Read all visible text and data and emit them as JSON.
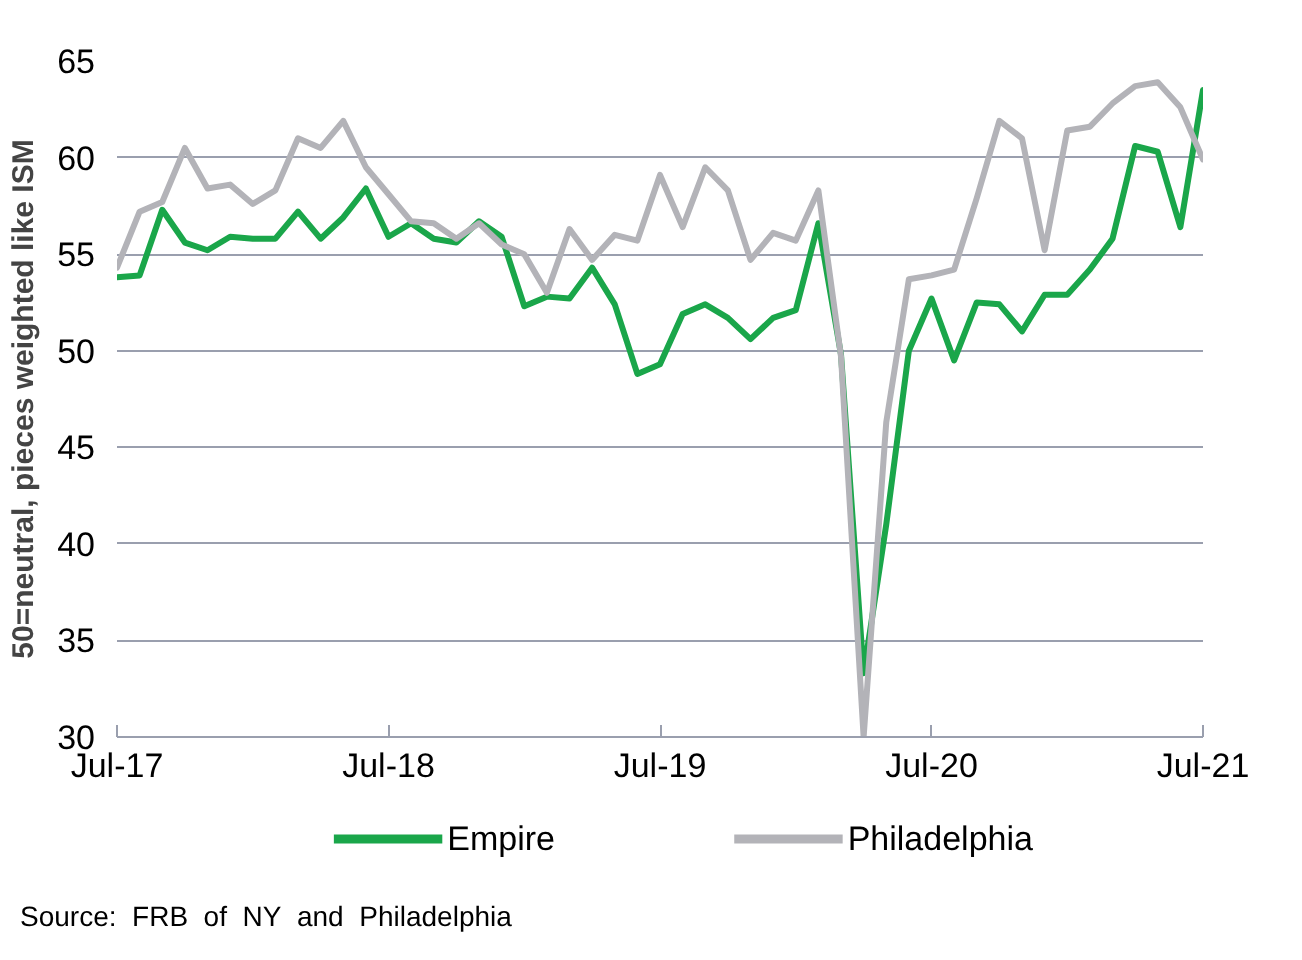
{
  "chart_data": {
    "type": "line",
    "ylabel": "50=neutral, pieces weighted like ISM",
    "x": [
      "2017-07",
      "2017-08",
      "2017-09",
      "2017-10",
      "2017-11",
      "2017-12",
      "2018-01",
      "2018-02",
      "2018-03",
      "2018-04",
      "2018-05",
      "2018-06",
      "2018-07",
      "2018-08",
      "2018-09",
      "2018-10",
      "2018-11",
      "2018-12",
      "2019-01",
      "2019-02",
      "2019-03",
      "2019-04",
      "2019-05",
      "2019-06",
      "2019-07",
      "2019-08",
      "2019-09",
      "2019-10",
      "2019-11",
      "2019-12",
      "2020-01",
      "2020-02",
      "2020-03",
      "2020-04",
      "2020-05",
      "2020-06",
      "2020-07",
      "2020-08",
      "2020-09",
      "2020-10",
      "2020-11",
      "2020-12",
      "2021-01",
      "2021-02",
      "2021-03",
      "2021-04",
      "2021-05",
      "2021-06",
      "2021-07"
    ],
    "series": [
      {
        "name": "Empire",
        "color": "#1aa64a",
        "values": [
          53.8,
          53.9,
          57.3,
          55.6,
          55.2,
          55.9,
          55.8,
          55.8,
          57.2,
          55.8,
          56.9,
          58.4,
          55.9,
          56.6,
          55.8,
          55.6,
          56.7,
          55.9,
          52.3,
          52.8,
          52.7,
          54.3,
          52.4,
          48.8,
          49.3,
          51.9,
          52.4,
          51.7,
          50.6,
          51.7,
          52.1,
          56.6,
          49.8,
          33.3,
          41.0,
          50.0,
          52.7,
          49.5,
          52.5,
          52.4,
          51.0,
          52.9,
          52.9,
          54.2,
          55.8,
          60.6,
          60.3,
          56.4,
          63.5
        ]
      },
      {
        "name": "Philadelphia",
        "color": "#b3b3b8",
        "values": [
          54.3,
          57.2,
          57.7,
          60.5,
          58.4,
          58.6,
          57.6,
          58.3,
          61.0,
          60.5,
          61.9,
          59.5,
          58.1,
          56.7,
          56.6,
          55.8,
          56.6,
          55.5,
          55.0,
          53.0,
          56.3,
          54.7,
          56.0,
          55.7,
          59.1,
          56.4,
          59.5,
          58.3,
          54.7,
          56.1,
          55.7,
          58.3,
          49.7,
          30.0,
          46.3,
          53.7,
          53.9,
          54.2,
          57.9,
          61.9,
          61.0,
          55.2,
          61.4,
          61.6,
          62.8,
          63.7,
          63.9,
          62.6,
          59.9
        ]
      }
    ],
    "xlim": [
      "2017-07",
      "2021-07"
    ],
    "xticks": [
      {
        "value": "2017-07",
        "label": "Jul-17"
      },
      {
        "value": "2018-07",
        "label": "Jul-18"
      },
      {
        "value": "2019-07",
        "label": "Jul-19"
      },
      {
        "value": "2020-07",
        "label": "Jul-20"
      },
      {
        "value": "2021-07",
        "label": "Jul-21"
      }
    ],
    "ylim": [
      30,
      65
    ],
    "yticks": [
      30,
      35,
      40,
      45,
      50,
      55,
      60,
      65
    ],
    "grid": "y",
    "legend": "bottom",
    "line_style": "solid",
    "annotations": [
      "Source:  FRB  of  NY  and  Philadelphia"
    ]
  }
}
